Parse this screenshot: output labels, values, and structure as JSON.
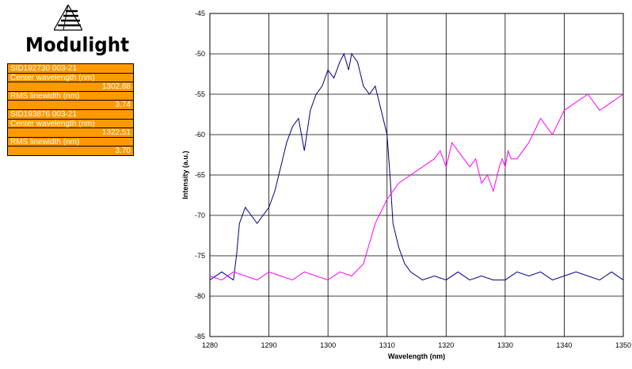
{
  "brand": {
    "name": "Modulight"
  },
  "info_table": [
    {
      "text": "SID192730 003-21",
      "kind": "label"
    },
    {
      "text": "Center wavelength (nm)",
      "kind": "label"
    },
    {
      "text": "1302.68",
      "kind": "value"
    },
    {
      "text": "RMS linewidth (nm)",
      "kind": "label"
    },
    {
      "text": "3.74",
      "kind": "value"
    },
    {
      "text": "SID193876 003-21",
      "kind": "label"
    },
    {
      "text": "Center wavelength (nm)",
      "kind": "label"
    },
    {
      "text": "1322.51",
      "kind": "value"
    },
    {
      "text": "RMS linewidth (nm)",
      "kind": "label"
    },
    {
      "text": "3.70",
      "kind": "value"
    }
  ],
  "colors": {
    "table_bg": "#ff9900",
    "series_1": "#000080",
    "series_2": "#ff00ff"
  },
  "chart_data": {
    "type": "line",
    "title": "",
    "xlabel": "Wavelength (nm)",
    "ylabel": "Intensity (a.u.)",
    "xlim": [
      1280,
      1350
    ],
    "ylim": [
      -85,
      -45
    ],
    "xticks": [
      1280,
      1290,
      1300,
      1310,
      1320,
      1330,
      1340,
      1350
    ],
    "yticks": [
      -45,
      -50,
      -55,
      -60,
      -65,
      -70,
      -75,
      -80,
      -85
    ],
    "grid": true,
    "legend": "none",
    "series": [
      {
        "color": "#000080",
        "x": [
          1280,
          1282,
          1284,
          1284.5,
          1285,
          1286,
          1287,
          1288,
          1289,
          1290,
          1291,
          1292,
          1293,
          1294,
          1295,
          1296,
          1297,
          1298,
          1299,
          1300,
          1301,
          1302,
          1302.7,
          1303.5,
          1304,
          1305,
          1306,
          1307,
          1308,
          1309,
          1310,
          1310.5,
          1311,
          1312,
          1313,
          1314,
          1316,
          1318,
          1320,
          1322,
          1324,
          1326,
          1328,
          1330,
          1332,
          1334,
          1336,
          1338,
          1340,
          1342,
          1344,
          1346,
          1348,
          1350
        ],
        "y": [
          -78,
          -77,
          -78,
          -75,
          -71,
          -69,
          -70,
          -71,
          -70,
          -69,
          -67,
          -64,
          -61,
          -59,
          -58,
          -62,
          -57,
          -55,
          -54,
          -52,
          -53,
          -51,
          -50,
          -52,
          -50,
          -51,
          -54,
          -55,
          -54,
          -57,
          -60,
          -65,
          -71,
          -74,
          -76,
          -77,
          -78,
          -77.5,
          -78,
          -77,
          -78,
          -77.5,
          -78,
          -78,
          -77,
          -77.5,
          -77,
          -78,
          -77.5,
          -77,
          -77.5,
          -78,
          -77,
          -78
        ]
      },
      {
        "color": "#ff00ff",
        "x": [
          1280,
          1282,
          1284,
          1286,
          1288,
          1290,
          1292,
          1294,
          1296,
          1298,
          1300,
          1302,
          1304,
          1306,
          1308,
          1310,
          1312,
          1314,
          1316,
          1318,
          1319,
          1320,
          1321,
          1322,
          1323,
          1324,
          1325,
          1326,
          1327,
          1328,
          1329,
          1329.5,
          1330,
          1330.5,
          1331,
          1332,
          1334,
          1336,
          1338,
          1340,
          1342,
          1344,
          1346,
          1348,
          1350
        ],
        "y": [
          -77.5,
          -78,
          -77,
          -77.5,
          -78,
          -77,
          -77.5,
          -78,
          -77,
          -77.5,
          -78,
          -77,
          -77.5,
          -76,
          -71,
          -68,
          -66,
          -65,
          -64,
          -63,
          -62,
          -64,
          -61,
          -62,
          -63,
          -64,
          -63,
          -66,
          -65,
          -67,
          -64,
          -63,
          -64,
          -62,
          -63,
          -63,
          -61,
          -58,
          -60,
          -57,
          -56,
          -55,
          -57,
          -56,
          -55
        ]
      }
    ]
  }
}
